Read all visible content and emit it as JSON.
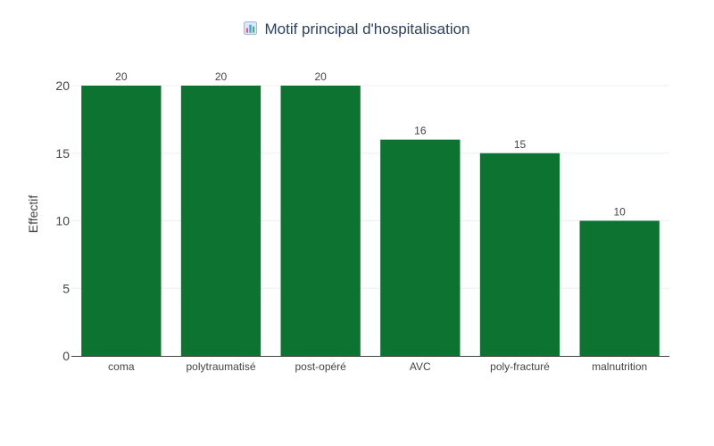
{
  "chart_data": {
    "type": "bar",
    "title": "Motif principal d'hospitalisation",
    "title_icon": "bar-chart-emoji-icon",
    "xlabel": "",
    "ylabel": "Effectif",
    "categories": [
      "coma",
      "polytraumatisé",
      "post-opéré",
      "AVC",
      "poly-fracturé",
      "malnutrition"
    ],
    "values": [
      20,
      20,
      20,
      16,
      15,
      10
    ],
    "data_labels": [
      "20",
      "20",
      "20",
      "16",
      "15",
      "10"
    ],
    "ylim": [
      0,
      20
    ],
    "y_ticks": [
      0,
      5,
      10,
      15,
      20
    ],
    "y_tick_labels": [
      "0",
      "5",
      "10",
      "15",
      "20"
    ],
    "grid": true,
    "colors": {
      "bar": "#0c7430",
      "grid": "#ebeff4",
      "axis": "#444444",
      "text": "#444444",
      "title": "#2a3f5f"
    }
  }
}
